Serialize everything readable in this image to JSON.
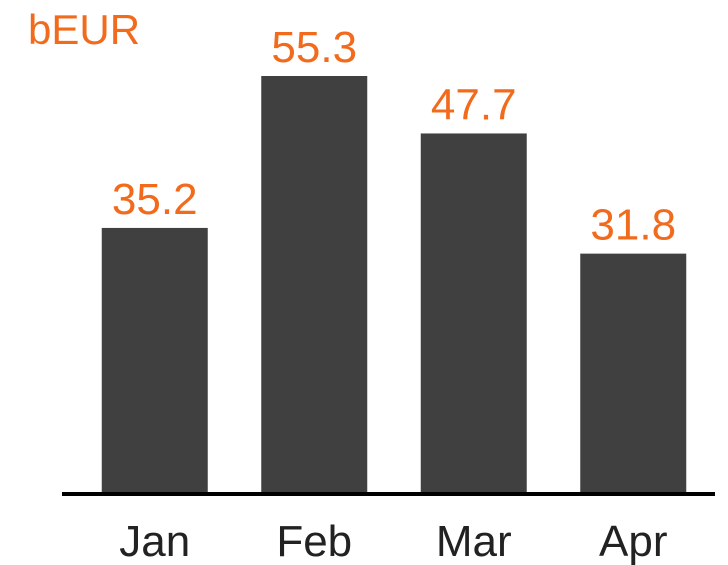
{
  "chart_data": {
    "type": "bar",
    "ylabel": "bEUR",
    "categories": [
      "Jan",
      "Feb",
      "Mar",
      "Apr"
    ],
    "values": [
      35.2,
      55.3,
      47.7,
      31.8
    ],
    "color": "#404040",
    "label_color": "#f26b1d",
    "axis_color": "#000000",
    "grid": false
  }
}
